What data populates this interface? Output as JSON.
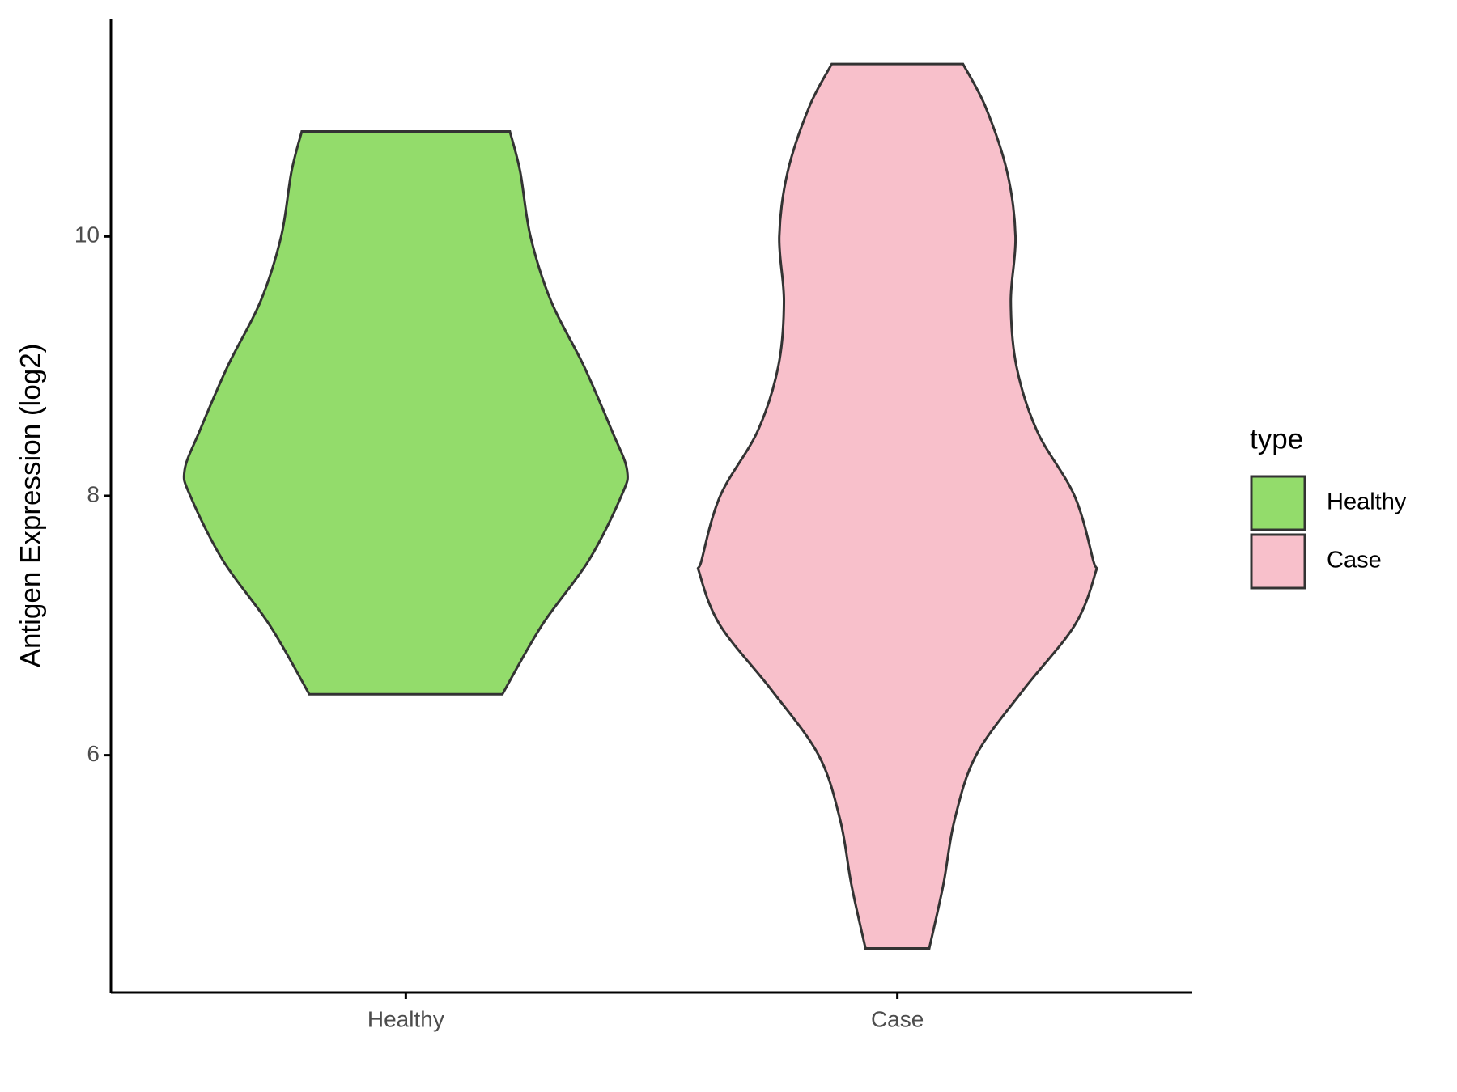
{
  "chart_data": {
    "type": "violin",
    "y_label": "Antigen Expression (log2)",
    "categories": [
      "Healthy",
      "Case"
    ],
    "legend_title": "type",
    "series": [
      {
        "name": "Healthy",
        "color": "#93dc6b",
        "y": [
          6.47,
          7,
          7.5,
          8,
          8.2,
          8.5,
          9,
          9.5,
          10,
          10.5,
          10.81
        ],
        "widths": [
          103,
          145,
          195,
          230,
          236,
          220,
          190,
          155,
          133,
          122,
          111
        ]
      },
      {
        "name": "Case",
        "color": "#f8c0cb",
        "y": [
          4.51,
          5,
          5.5,
          6,
          6.5,
          7,
          7.4,
          7.5,
          8,
          8.5,
          9,
          9.5,
          10,
          10.5,
          11,
          11.33
        ],
        "widths": [
          34,
          49,
          61,
          84,
          134,
          189,
          211,
          209,
          189,
          149,
          127,
          121,
          126,
          117,
          94,
          70
        ]
      }
    ],
    "ylim": [
      4.17,
      11.68
    ],
    "yticks": [
      6,
      8,
      10
    ],
    "grid": false,
    "legend": "right"
  }
}
